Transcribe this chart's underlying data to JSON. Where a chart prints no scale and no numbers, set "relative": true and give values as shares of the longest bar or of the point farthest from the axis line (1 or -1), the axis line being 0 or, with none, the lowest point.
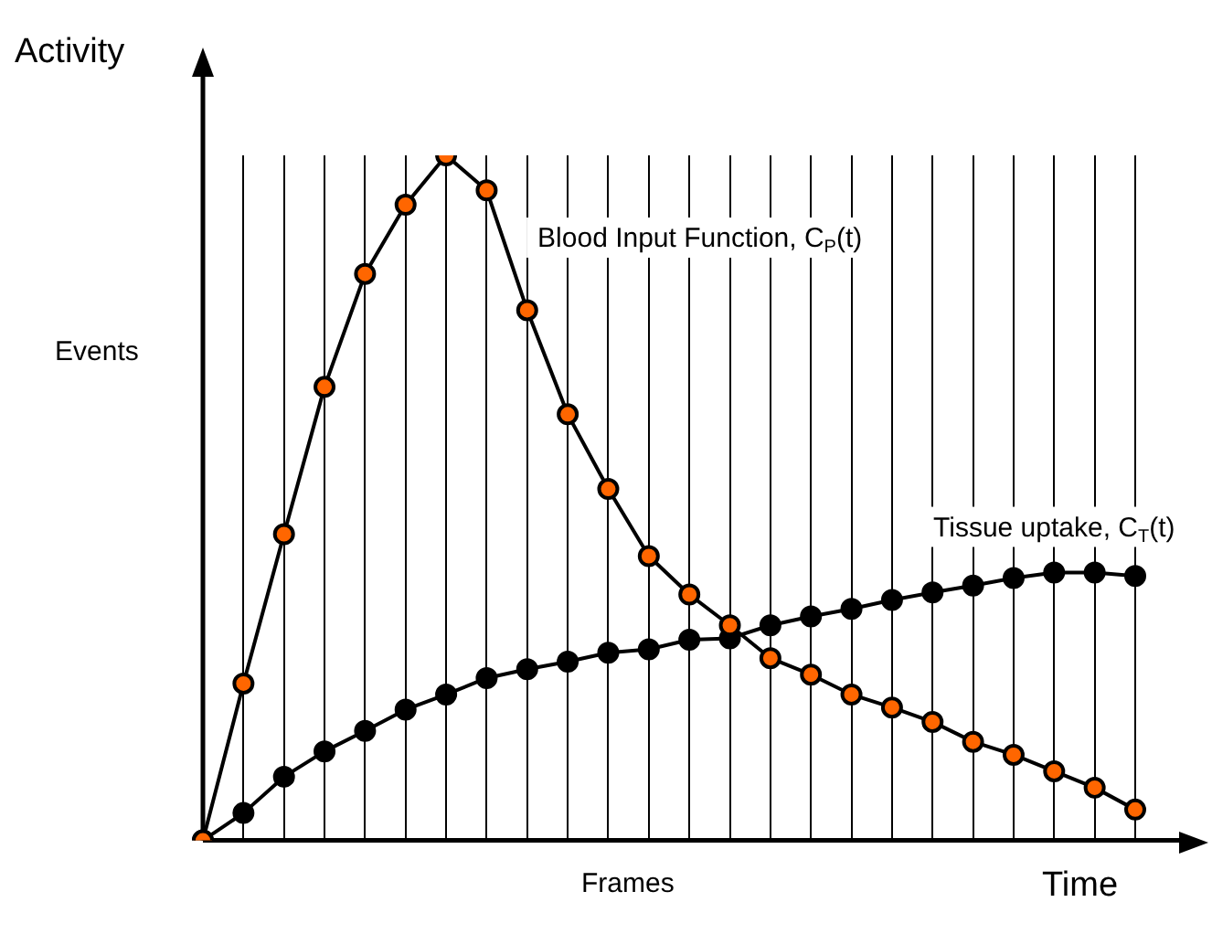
{
  "chart_data": {
    "type": "line",
    "relative": true,
    "ylabel": "Activity",
    "xlabel": "Time",
    "annotations": [
      "Events",
      "Frames"
    ],
    "categories": [
      null,
      null,
      null,
      null,
      null,
      null,
      null,
      null,
      null,
      null,
      null,
      null,
      null,
      null,
      null,
      null,
      null,
      null,
      null,
      null,
      null,
      null,
      null,
      null
    ],
    "grid": "x",
    "legend": false,
    "marker": "circle",
    "series": [
      {
        "name": "Blood Input Function, C$_{P}$(t)",
        "color": "#ff6600",
        "values": [
          0,
          0.229,
          0.447,
          0.662,
          0.827,
          0.928,
          1,
          0.949,
          0.774,
          0.622,
          0.513,
          0.415,
          0.359,
          0.314,
          0.266,
          0.242,
          0.213,
          0.194,
          0.173,
          0.144,
          0.125,
          0.101,
          0.077,
          0.045
        ]
      },
      {
        "name": "Tissue uptake, C$_{T}$(t)",
        "color": "#000000",
        "values": [
          0,
          0.04,
          0.093,
          0.13,
          0.16,
          0.191,
          0.213,
          0.237,
          0.25,
          0.261,
          0.274,
          0.279,
          0.293,
          0.295,
          0.314,
          0.327,
          0.338,
          0.351,
          0.362,
          0.372,
          0.383,
          0.391,
          0.391,
          0.386
        ]
      }
    ]
  }
}
